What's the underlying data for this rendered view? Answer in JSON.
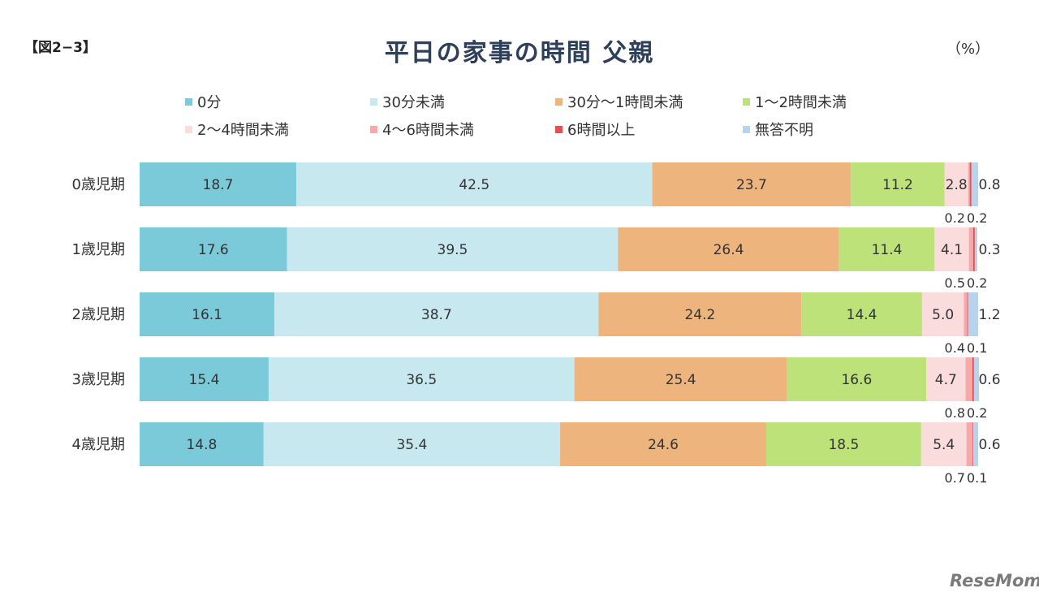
{
  "figure_label": "【図2−3】",
  "unit_label": "（%）",
  "watermark": "ReseMom",
  "chart_data": {
    "type": "bar",
    "orientation": "horizontal-stacked-100",
    "title": "平日の家事の時間  父親",
    "categories": [
      "0歳児期",
      "1歳児期",
      "2歳児期",
      "3歳児期",
      "4歳児期"
    ],
    "series": [
      {
        "name": "0分",
        "color": "#7bcad9",
        "values": [
          18.7,
          17.6,
          16.1,
          15.4,
          14.8
        ],
        "labels": [
          "18.7",
          "17.6",
          "16.1",
          "15.4",
          "14.8"
        ]
      },
      {
        "name": "30分未満",
        "color": "#c7e8ef",
        "values": [
          42.5,
          39.5,
          38.7,
          36.5,
          35.4
        ],
        "labels": [
          "42.5",
          "39.5",
          "38.7",
          "36.5",
          "35.4"
        ]
      },
      {
        "name": "30分〜1時間未満",
        "color": "#edb47e",
        "values": [
          23.7,
          26.4,
          24.2,
          25.4,
          24.6
        ],
        "labels": [
          "23.7",
          "26.4",
          "24.2",
          "25.4",
          "24.6"
        ]
      },
      {
        "name": "1〜2時間未満",
        "color": "#bde27a",
        "values": [
          11.2,
          11.4,
          14.4,
          16.6,
          18.5
        ],
        "labels": [
          "11.2",
          "11.4",
          "14.4",
          "16.6",
          "18.5"
        ]
      },
      {
        "name": "2〜4時間未満",
        "color": "#fbdcdc",
        "values": [
          2.8,
          4.1,
          5.0,
          4.7,
          5.4
        ],
        "labels": [
          "2.8",
          "4.1",
          "5.0",
          "4.7",
          "5.4"
        ]
      },
      {
        "name": "4〜6時間未満",
        "color": "#f4aaa8",
        "values": [
          0.2,
          0.5,
          0.4,
          0.8,
          0.7
        ],
        "labels": [
          "0.2",
          "0.5",
          "0.4",
          "0.8",
          "0.7"
        ]
      },
      {
        "name": "6時間以上",
        "color": "#ea4b55",
        "values": [
          0.2,
          0.2,
          0.1,
          0.2,
          0.1
        ],
        "labels": [
          "0.2",
          "0.2",
          "0.1",
          "0.2",
          "0.1"
        ]
      },
      {
        "name": "無答不明",
        "color": "#b9d3ec",
        "values": [
          0.8,
          0.3,
          1.2,
          0.6,
          0.6
        ],
        "labels": [
          "0.8",
          "0.3",
          "1.2",
          "0.6",
          "0.6"
        ]
      }
    ],
    "xlim": [
      0,
      100
    ],
    "grid": false,
    "legend_position": "top"
  }
}
